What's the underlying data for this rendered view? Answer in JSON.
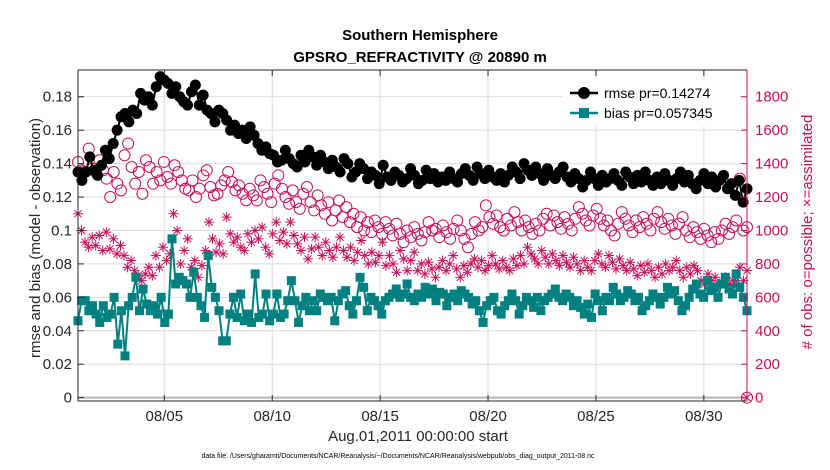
{
  "chart_data": {
    "type": "line",
    "title": "Southern Hemisphere",
    "subtitle": "GPSRO_REFRACTIVITY @ 20890 m",
    "xlabel": "Aug.01,2011 00:00:00 start",
    "ylabel": "rmse and bias (model - observation)",
    "y2label": "# of obs: o=possible; ×=assimilated",
    "footnote": "data file: /Users/gharamti/Documents/NCAR/Reanalysis/~/Documents/NCAR/Reanalysis/webpub/obs_diag_output_2011-08.nc",
    "xlim": [
      1,
      32
    ],
    "ylim": [
      -0.002,
      0.196
    ],
    "y2lim": [
      -20,
      1960
    ],
    "x_ticks": [
      5,
      10,
      15,
      20,
      25,
      30
    ],
    "x_tick_labels": [
      "08/05",
      "08/10",
      "08/15",
      "08/20",
      "08/25",
      "08/30"
    ],
    "y_ticks": [
      0,
      0.02,
      0.04,
      0.06,
      0.08,
      0.1,
      0.12,
      0.14,
      0.16,
      0.18
    ],
    "y_tick_labels": [
      "0",
      "0.02",
      "0.04",
      "0.06",
      "0.08",
      "0.1",
      "0.12",
      "0.14",
      "0.16",
      "0.18"
    ],
    "y2_ticks": [
      0,
      200,
      400,
      600,
      800,
      1000,
      1200,
      1400,
      1600,
      1800
    ],
    "y2_tick_labels": [
      "0",
      "200",
      "400",
      "600",
      "800",
      "1000",
      "1200",
      "1400",
      "1600",
      "1800"
    ],
    "grid": true,
    "legend_position": "top-right",
    "colors": {
      "rmse": "#000000",
      "bias": "#008080",
      "obs": "#c8105a",
      "zero_line": "#b4b4b4",
      "grid": "#dcdcdc"
    },
    "series": [
      {
        "name": "rmse pr=0.14274",
        "axis": "left",
        "values": [
          0.135,
          0.13,
          0.135,
          0.144,
          0.136,
          0.133,
          0.139,
          0.148,
          0.143,
          0.152,
          0.16,
          0.168,
          0.17,
          0.165,
          0.172,
          0.17,
          0.182,
          0.178,
          0.18,
          0.175,
          0.186,
          0.192,
          0.19,
          0.188,
          0.182,
          0.186,
          0.18,
          0.177,
          0.175,
          0.183,
          0.187,
          0.175,
          0.181,
          0.172,
          0.17,
          0.165,
          0.172,
          0.17,
          0.166,
          0.16,
          0.163,
          0.158,
          0.16,
          0.155,
          0.162,
          0.157,
          0.152,
          0.148,
          0.15,
          0.146,
          0.145,
          0.141,
          0.142,
          0.148,
          0.143,
          0.14,
          0.138,
          0.145,
          0.141,
          0.148,
          0.144,
          0.139,
          0.145,
          0.141,
          0.137,
          0.142,
          0.138,
          0.135,
          0.143,
          0.14,
          0.132,
          0.135,
          0.14,
          0.137,
          0.131,
          0.135,
          0.133,
          0.128,
          0.139,
          0.132,
          0.13,
          0.135,
          0.133,
          0.129,
          0.131,
          0.137,
          0.133,
          0.128,
          0.13,
          0.136,
          0.131,
          0.134,
          0.129,
          0.132,
          0.13,
          0.135,
          0.131,
          0.129,
          0.134,
          0.137,
          0.133,
          0.13,
          0.138,
          0.134,
          0.131,
          0.136,
          0.132,
          0.13,
          0.134,
          0.129,
          0.133,
          0.138,
          0.135,
          0.131,
          0.14,
          0.136,
          0.133,
          0.138,
          0.134,
          0.13,
          0.137,
          0.133,
          0.131,
          0.135,
          0.138,
          0.132,
          0.129,
          0.134,
          0.131,
          0.126,
          0.13,
          0.135,
          0.131,
          0.127,
          0.133,
          0.129,
          0.131,
          0.134,
          0.13,
          0.127,
          0.135,
          0.132,
          0.128,
          0.133,
          0.129,
          0.135,
          0.13,
          0.127,
          0.132,
          0.128,
          0.134,
          0.13,
          0.127,
          0.131,
          0.135,
          0.129,
          0.133,
          0.128,
          0.125,
          0.13,
          0.134,
          0.128,
          0.132,
          0.126,
          0.13,
          0.133,
          0.125,
          0.128,
          0.121,
          0.13,
          0.117,
          0.125
        ]
      },
      {
        "name": "bias pr=0.057345",
        "axis": "left",
        "values": [
          0.046,
          0.058,
          0.058,
          0.052,
          0.055,
          0.05,
          0.045,
          0.055,
          0.048,
          0.05,
          0.06,
          0.032,
          0.052,
          0.025,
          0.055,
          0.06,
          0.072,
          0.052,
          0.065,
          0.056,
          0.052,
          0.055,
          0.05,
          0.06,
          0.045,
          0.05,
          0.095,
          0.068,
          0.072,
          0.07,
          0.068,
          0.06,
          0.075,
          0.06,
          0.055,
          0.048,
          0.085,
          0.066,
          0.06,
          0.052,
          0.034,
          0.034,
          0.05,
          0.06,
          0.048,
          0.062,
          0.046,
          0.05,
          0.045,
          0.074,
          0.048,
          0.05,
          0.062,
          0.046,
          0.05,
          0.062,
          0.048,
          0.05,
          0.058,
          0.07,
          0.058,
          0.045,
          0.055,
          0.06,
          0.052,
          0.058,
          0.052,
          0.062,
          0.06,
          0.058,
          0.06,
          0.046,
          0.058,
          0.062,
          0.064,
          0.055,
          0.05,
          0.058,
          0.072,
          0.066,
          0.052,
          0.06,
          0.058,
          0.055,
          0.05,
          0.058,
          0.06,
          0.062,
          0.065,
          0.06,
          0.062,
          0.068,
          0.06,
          0.058,
          0.062,
          0.06,
          0.066,
          0.062,
          0.065,
          0.058,
          0.063,
          0.062,
          0.055,
          0.06,
          0.062,
          0.058,
          0.064,
          0.062,
          0.06,
          0.056,
          0.058,
          0.052,
          0.045,
          0.055,
          0.058,
          0.06,
          0.052,
          0.05,
          0.055,
          0.058,
          0.062,
          0.058,
          0.05,
          0.055,
          0.06,
          0.058,
          0.054,
          0.06,
          0.052,
          0.058,
          0.06,
          0.062,
          0.065,
          0.06,
          0.058,
          0.062,
          0.06,
          0.055,
          0.058,
          0.054,
          0.05,
          0.056,
          0.048,
          0.062,
          0.058,
          0.052,
          0.06,
          0.058,
          0.066,
          0.062,
          0.058,
          0.06,
          0.064,
          0.062,
          0.058,
          0.06,
          0.052,
          0.055,
          0.058,
          0.062,
          0.06,
          0.056,
          0.06,
          0.066,
          0.062,
          0.064,
          0.058,
          0.052,
          0.055,
          0.06,
          0.065,
          0.068,
          0.062,
          0.06,
          0.07,
          0.064,
          0.066,
          0.06,
          0.068,
          0.072,
          0.065,
          0.062,
          0.074,
          0.066,
          0.06,
          0.052
        ]
      },
      {
        "name": "possible",
        "axis": "right",
        "values": [
          1410,
          1360,
          1350,
          1490,
          1370,
          1350,
          1420,
          1360,
          1310,
          1200,
          1350,
          1280,
          1240,
          1450,
          1520,
          1380,
          1280,
          1350,
          1220,
          1420,
          1380,
          1280,
          1350,
          1300,
          1410,
          1320,
          1280,
          1390,
          1350,
          1300,
          1250,
          1240,
          1300,
          1200,
          1250,
          1330,
          1360,
          1260,
          1210,
          1220,
          1270,
          1300,
          1350,
          1290,
          1240,
          1270,
          1220,
          1180,
          1250,
          1210,
          1180,
          1300,
          1260,
          1220,
          1170,
          1280,
          1330,
          1250,
          1200,
          1160,
          1240,
          1170,
          1130,
          1220,
          1260,
          1170,
          1120,
          1210,
          1150,
          1100,
          1170,
          1060,
          1120,
          1180,
          1080,
          1140,
          1050,
          1100,
          1020,
          1080,
          1000,
          1050,
          990,
          1060,
          1020,
          980,
          1050,
          1010,
          970,
          1040,
          980,
          930,
          1000,
          960,
          1020,
          980,
          940,
          990,
          1050,
          1000,
          1010,
          960,
          1030,
          990,
          950,
          1010,
          1060,
          1000,
          950,
          900,
          980,
          1050,
          1000,
          1020,
          1150,
          1080,
          1040,
          1090,
          1020,
          1000,
          1070,
          1030,
          1110,
          1050,
          1000,
          1060,
          1020,
          980,
          1040,
          1000,
          1070,
          1100,
          1030,
          1090,
          1050,
          1010,
          1080,
          1040,
          1000,
          1070,
          1140,
          1100,
          1060,
          1030,
          1090,
          1130,
          1070,
          1030,
          1060,
          1000,
          970,
          1040,
          1110,
          1070,
          1030,
          990,
          1060,
          1020,
          1080,
          1040,
          1000,
          1070,
          1110,
          1050,
          1010,
          1070,
          1030,
          980,
          1040,
          1080,
          1000,
          960,
          1020,
          990,
          950,
          1010,
          970,
          930,
          990,
          950,
          1000,
          1040,
          980,
          1020,
          1060,
          1310,
          1000,
          1020
        ]
      },
      {
        "name": "assimilated",
        "axis": "right",
        "values": [
          1100,
          1000,
          930,
          900,
          960,
          910,
          970,
          880,
          990,
          890,
          950,
          860,
          910,
          850,
          780,
          820,
          760,
          730,
          700,
          740,
          780,
          730,
          850,
          780,
          900,
          820,
          860,
          1100,
          1000,
          800,
          880,
          950,
          780,
          820,
          720,
          790,
          880,
          1050,
          950,
          870,
          920,
          860,
          1080,
          980,
          930,
          960,
          900,
          880,
          980,
          930,
          1000,
          950,
          1020,
          900,
          860,
          980,
          1050,
          940,
          990,
          920,
          1050,
          970,
          920,
          880,
          960,
          830,
          890,
          960,
          900,
          850,
          930,
          880,
          840,
          900,
          960,
          880,
          840,
          900,
          820,
          870,
          940,
          850,
          800,
          870,
          810,
          850,
          930,
          790,
          850,
          800,
          750,
          880,
          830,
          760,
          820,
          870,
          760,
          800,
          740,
          810,
          770,
          720,
          780,
          820,
          760,
          800,
          850,
          770,
          720,
          790,
          750,
          800,
          830,
          780,
          820,
          760,
          790,
          850,
          800,
          770,
          820,
          780,
          760,
          830,
          790,
          850,
          800,
          900,
          860,
          830,
          800,
          880,
          840,
          800,
          860,
          820,
          790,
          850,
          810,
          780,
          840,
          800,
          760,
          820,
          780,
          760,
          820,
          860,
          800,
          780,
          850,
          810,
          770,
          830,
          790,
          760,
          810,
          770,
          730,
          790,
          750,
          800,
          760,
          720,
          780,
          740,
          800,
          760,
          780,
          820,
          760,
          720,
          780,
          740,
          790,
          760,
          700,
          680,
          740,
          700,
          720,
          680,
          690,
          720,
          680,
          700,
          670,
          780,
          700,
          760
        ]
      }
    ]
  }
}
